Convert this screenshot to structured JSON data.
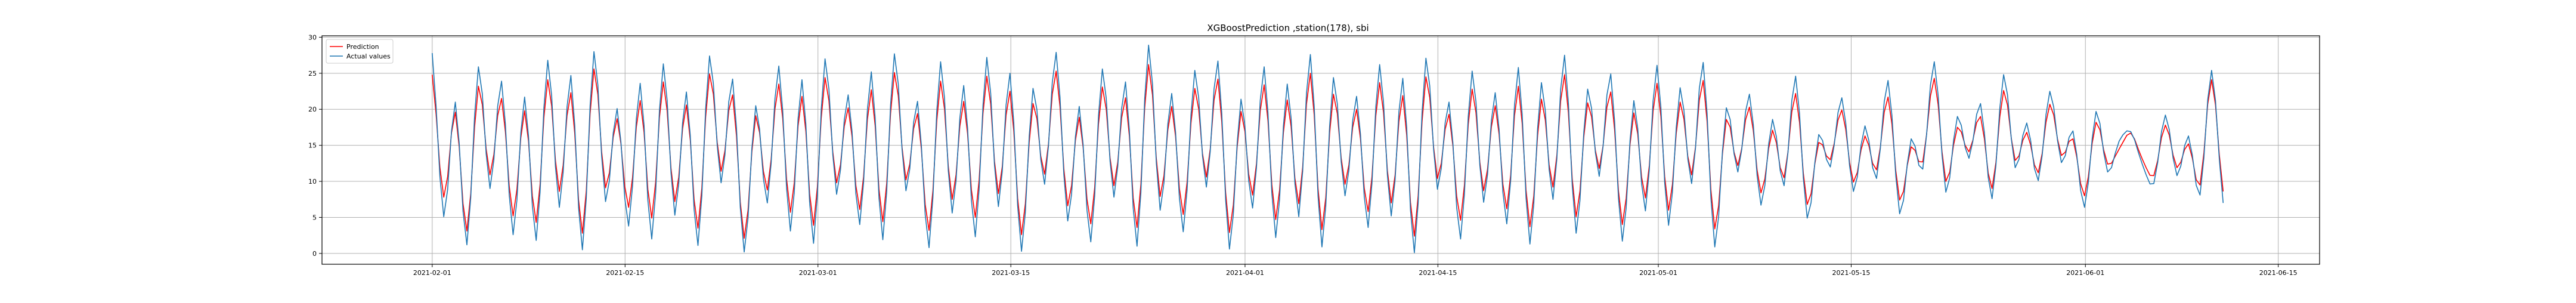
{
  "chart_data": {
    "type": "line",
    "title": "XGBoostPrediction ,station(178), sbi",
    "xlabel": "",
    "ylabel": "",
    "x_range": [
      "2021-01-24",
      "2021-06-18"
    ],
    "ylim": [
      -1.5,
      30.2
    ],
    "yticks": [
      0,
      5,
      10,
      15,
      20,
      25,
      30
    ],
    "xticks": [
      "2021-02-01",
      "2021-02-15",
      "2021-03-01",
      "2021-03-15",
      "2021-04-01",
      "2021-04-15",
      "2021-05-01",
      "2021-05-15",
      "2021-06-01",
      "2021-06-15"
    ],
    "grid": true,
    "legend": {
      "position": "top-left",
      "entries": [
        "Prediction",
        "Actual values"
      ]
    },
    "series": [
      {
        "name": "Prediction",
        "color": "#ff0000",
        "x_start": "2021-02-01",
        "x_end": "2021-06-11",
        "control_values": [
          24.8,
          7.8,
          19.6,
          3.1,
          23.2,
          10.9,
          21.5,
          5.2,
          19.8,
          4.3,
          24.1,
          8.6,
          22.3,
          2.8,
          25.6,
          9.1,
          18.7,
          6.4,
          21.2,
          4.9,
          23.8,
          7.2,
          20.6,
          3.5,
          24.9,
          11.4,
          22.0,
          2.1,
          19.1,
          8.8,
          23.5,
          5.7,
          21.8,
          3.9,
          24.4,
          9.8,
          20.2,
          6.1,
          22.7,
          4.4,
          25.1,
          10.2,
          19.4,
          3.2,
          23.9,
          7.5,
          21.1,
          5.0,
          24.6,
          8.3,
          22.5,
          2.6,
          20.8,
          11.0,
          25.3,
          6.6,
          18.9,
          4.1,
          23.1,
          9.4,
          21.6,
          3.6,
          26.2,
          7.9,
          20.4,
          5.4,
          22.9,
          10.6,
          24.2,
          2.9,
          19.7,
          8.1,
          23.4,
          4.7,
          21.3,
          6.9,
          25.0,
          3.3,
          22.1,
          9.6,
          20.0,
          5.8,
          23.7,
          7.0,
          21.9,
          2.4,
          24.5,
          10.4,
          19.3,
          4.6,
          22.8,
          8.7,
          20.5,
          6.2,
          23.2,
          3.7,
          21.4,
          9.2,
          24.8,
          5.1,
          20.9,
          11.8,
          22.4,
          4.0,
          19.5,
          7.7,
          23.6,
          6.0,
          21.0,
          10.9,
          24.0,
          3.4,
          18.6,
          12.2,
          20.3,
          8.4,
          17.1,
          10.5,
          22.2,
          6.8,
          15.4,
          13.0,
          19.9,
          9.9,
          16.3,
          11.6,
          21.7,
          7.4,
          14.8,
          12.7,
          24.3,
          10.0,
          17.5,
          14.1,
          19.0,
          9.0,
          22.6,
          12.9,
          16.8,
          11.2,
          20.7,
          13.6,
          15.9,
          8.0,
          18.2,
          12.4,
          14.5,
          16.7,
          13.1,
          10.8,
          17.8,
          11.9,
          15.2,
          9.5,
          24.1,
          8.6
        ]
      },
      {
        "name": "Actual values",
        "color": "#1f77b4",
        "x_start": "2021-02-01",
        "x_end": "2021-06-11",
        "control_values": [
          27.8,
          5.1,
          21.0,
          1.2,
          25.9,
          9.0,
          23.9,
          2.6,
          21.7,
          1.8,
          26.8,
          6.4,
          24.7,
          0.5,
          28.0,
          7.2,
          20.1,
          3.8,
          23.6,
          2.0,
          26.3,
          5.3,
          22.4,
          1.1,
          27.4,
          9.8,
          24.2,
          0.2,
          20.5,
          7.0,
          26.0,
          3.1,
          24.1,
          1.4,
          27.0,
          8.2,
          22.0,
          4.0,
          25.2,
          1.9,
          27.7,
          8.7,
          21.1,
          0.8,
          26.6,
          5.6,
          23.3,
          2.3,
          27.2,
          6.5,
          25.0,
          0.3,
          22.9,
          9.6,
          27.9,
          4.5,
          20.4,
          1.6,
          25.6,
          7.8,
          23.8,
          1.0,
          28.9,
          6.0,
          22.2,
          3.0,
          25.4,
          9.2,
          26.7,
          0.6,
          21.4,
          6.3,
          25.9,
          2.2,
          23.5,
          5.1,
          27.6,
          0.9,
          24.4,
          8.0,
          21.8,
          3.6,
          26.2,
          5.2,
          24.3,
          0.1,
          27.1,
          8.9,
          21.0,
          2.0,
          25.3,
          7.1,
          22.3,
          4.1,
          25.8,
          1.3,
          23.7,
          7.5,
          27.5,
          2.8,
          22.8,
          10.7,
          24.9,
          1.7,
          21.2,
          5.9,
          26.1,
          3.9,
          23.0,
          9.7,
          26.5,
          0.9,
          20.2,
          11.3,
          22.1,
          6.7,
          18.6,
          9.4,
          24.6,
          4.9,
          16.5,
          12.0,
          21.6,
          8.6,
          17.7,
          10.4,
          24.0,
          5.5,
          15.9,
          11.7,
          26.6,
          8.5,
          19.0,
          13.2,
          20.8,
          7.6,
          24.8,
          11.9,
          18.1,
          10.1,
          22.5,
          12.6,
          17.0,
          6.4,
          19.7,
          11.3,
          15.6,
          16.9,
          12.4,
          9.7,
          19.2,
          10.8,
          16.3,
          8.1,
          25.4,
          7.0
        ]
      }
    ]
  }
}
